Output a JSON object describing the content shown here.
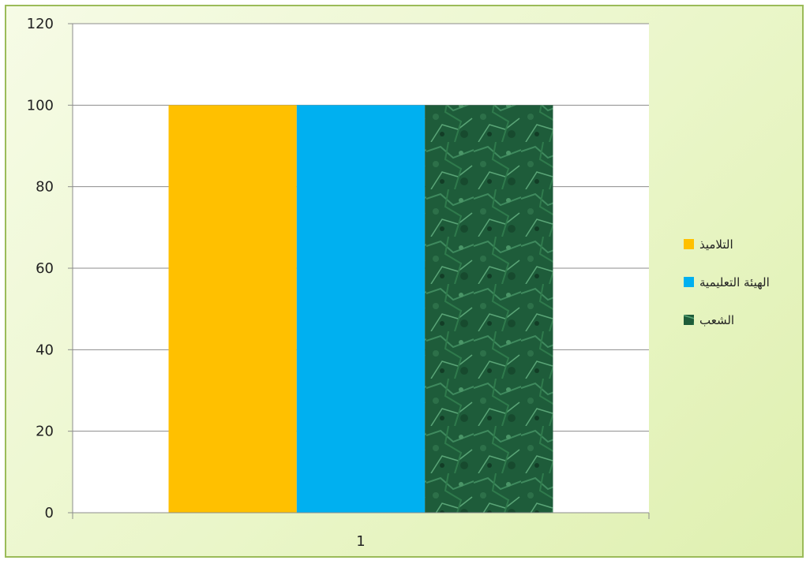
{
  "chart_data": {
    "type": "bar",
    "categories": [
      "1"
    ],
    "series": [
      {
        "name": "التلاميذ",
        "values": [
          100
        ],
        "color": "#ffc000"
      },
      {
        "name": "الهيئة التعليمية",
        "values": [
          100
        ],
        "color": "#00b0f0"
      },
      {
        "name": "الشعب",
        "values": [
          100
        ],
        "color": "#1e5c3a"
      }
    ],
    "yticks": [
      "0",
      "20",
      "40",
      "60",
      "80",
      "100",
      "120"
    ],
    "ylim": [
      0,
      120
    ],
    "grid": true,
    "legend_position": "right",
    "title": "",
    "xlabel": "",
    "ylabel": ""
  }
}
